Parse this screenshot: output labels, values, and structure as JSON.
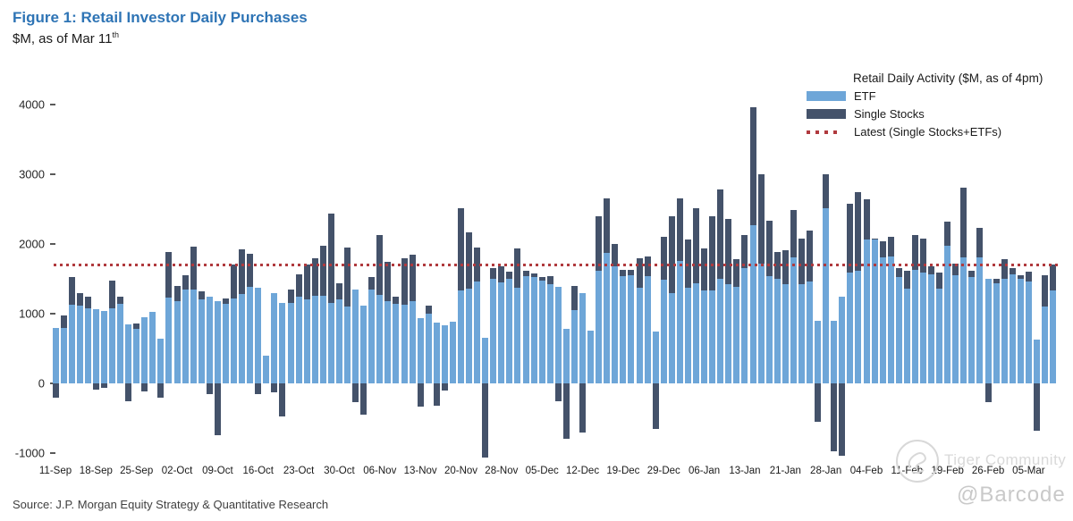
{
  "header": {
    "title": "Figure 1: Retail Investor Daily Purchases",
    "subtitle_main": "$M, as of Mar 11",
    "subtitle_sup": "th"
  },
  "source": "Source: J.P. Morgan Equity Strategy & Quantitative Research",
  "watermark": {
    "community": "Tiger Community",
    "handle": "@Barcode"
  },
  "legend": {
    "title": "Retail Daily Activity ($M, as of 4pm)",
    "items": [
      {
        "label": "ETF",
        "type": "swatch",
        "color": "#6ea6d8"
      },
      {
        "label": "Single Stocks",
        "type": "swatch",
        "color": "#44526a"
      },
      {
        "label": "Latest (Single Stocks+ETFs)",
        "type": "dotted",
        "color": "#b03a3e"
      }
    ]
  },
  "colors": {
    "title_blue": "#2e74b5",
    "etf_bar": "#6ea6d8",
    "single_stocks_bar": "#44526a",
    "latest_line": "#b03a3e"
  },
  "chart_data": {
    "type": "bar",
    "stacked": true,
    "title": "Retail Daily Activity ($M, as of 4pm)",
    "ylabel": "$M",
    "ylim": [
      -1000,
      4000
    ],
    "yticks": [
      4000,
      3000,
      2000,
      1000,
      0,
      -1000
    ],
    "grid": false,
    "legend_position": "top-right",
    "latest_line_value": 1710,
    "x_tick_every": 5,
    "x_tick_labels": [
      "11-Sep",
      "18-Sep",
      "25-Sep",
      "02-Oct",
      "09-Oct",
      "16-Oct",
      "23-Oct",
      "30-Oct",
      "06-Nov",
      "13-Nov",
      "20-Nov",
      "28-Nov",
      "05-Dec",
      "12-Dec",
      "19-Dec",
      "29-Dec",
      "06-Jan",
      "13-Jan",
      "21-Jan",
      "28-Jan",
      "04-Feb",
      "11-Feb",
      "19-Feb",
      "26-Feb",
      "05-Mar"
    ],
    "series": [
      {
        "name": "ETF",
        "color": "#6ea6d8",
        "values": [
          790,
          800,
          1130,
          1110,
          1080,
          1060,
          1040,
          1080,
          1140,
          850,
          780,
          950,
          1020,
          640,
          1230,
          1180,
          1350,
          1340,
          1200,
          1250,
          1180,
          1140,
          1220,
          1280,
          1390,
          1375,
          400,
          1300,
          1150,
          1150,
          1240,
          1200,
          1260,
          1260,
          1160,
          1210,
          1100,
          1350,
          1120,
          1340,
          1270,
          1180,
          1145,
          1130,
          1180,
          930,
          1000,
          870,
          830,
          890,
          1330,
          1355,
          1460,
          650,
          1505,
          1450,
          1500,
          1375,
          1540,
          1520,
          1480,
          1420,
          1380,
          780,
          1050,
          1300,
          760,
          1610,
          1870,
          1675,
          1540,
          1545,
          1370,
          1540,
          750,
          1490,
          1290,
          1760,
          1370,
          1440,
          1330,
          1330,
          1500,
          1420,
          1380,
          1655,
          2275,
          1720,
          1540,
          1500,
          1420,
          1805,
          1420,
          1460,
          895,
          2510,
          900,
          1250,
          1590,
          1610,
          2060,
          2060,
          1805,
          1825,
          1530,
          1355,
          1630,
          1590,
          1570,
          1355,
          1975,
          1545,
          1805,
          1530,
          1805,
          1505,
          1440,
          1500,
          1570,
          1505,
          1460,
          630,
          1100,
          1330
        ]
      },
      {
        "name": "Single Stocks",
        "color": "#44526a",
        "values": [
          -210,
          170,
          390,
          190,
          160,
          -90,
          -70,
          390,
          110,
          -250,
          80,
          -120,
          0,
          -200,
          650,
          220,
          200,
          620,
          120,
          -150,
          -740,
          80,
          480,
          640,
          470,
          -160,
          0,
          -130,
          -480,
          200,
          330,
          500,
          540,
          715,
          1280,
          230,
          850,
          -270,
          -450,
          180,
          855,
          560,
          105,
          670,
          665,
          -330,
          120,
          -315,
          -100,
          0,
          1180,
          810,
          495,
          -1060,
          150,
          230,
          100,
          555,
          80,
          60,
          40,
          120,
          -250,
          -800,
          350,
          -700,
          0,
          790,
          790,
          325,
          90,
          85,
          430,
          285,
          -650,
          610,
          1110,
          900,
          690,
          1070,
          600,
          1070,
          1280,
          940,
          400,
          470,
          1690,
          1275,
          795,
          390,
          490,
          685,
          660,
          730,
          -550,
          490,
          -980,
          -1040,
          985,
          1135,
          580,
          20,
          235,
          275,
          120,
          255,
          495,
          490,
          105,
          235,
          340,
          175,
          1005,
          80,
          425,
          -270,
          60,
          280,
          85,
          40,
          140,
          -675,
          445,
          380
        ]
      }
    ]
  }
}
